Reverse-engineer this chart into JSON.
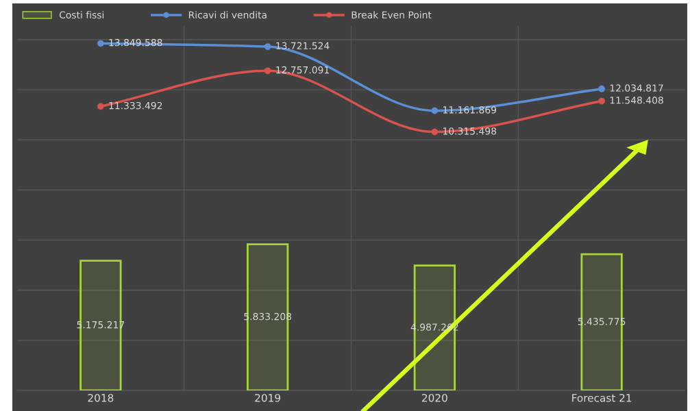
{
  "chart_data": {
    "type": "bar",
    "categories": [
      "2018",
      "2019",
      "2020",
      "Forecast 21"
    ],
    "tick_labels": "x",
    "grid": true,
    "legend": "top left",
    "marker": "circle",
    "line_style": "solid",
    "series": [
      {
        "name": "Costi fissi",
        "color": "#a8d43c",
        "values": [
          5175217,
          5833208,
          4987262,
          5435775
        ],
        "value_labels": [
          "5.175.217",
          "5.833.208",
          "4.987.262",
          "5.435.775"
        ]
      },
      {
        "name": "Ricavi di vendita",
        "type": "line",
        "color": "#5b8fd6",
        "values": [
          13849588,
          13721524,
          11161869,
          12034817
        ],
        "value_labels": [
          "13.849.588",
          "13.721.524",
          "11.161.869",
          "12.034.817"
        ]
      },
      {
        "name": "Break Even Point",
        "type": "line",
        "color": "#d9534f",
        "values": [
          11333492,
          12757091,
          10315498,
          11548408
        ],
        "value_labels": [
          "11.333.492",
          "12.757.091",
          "10.315.498",
          "11.548.408"
        ]
      }
    ]
  }
}
